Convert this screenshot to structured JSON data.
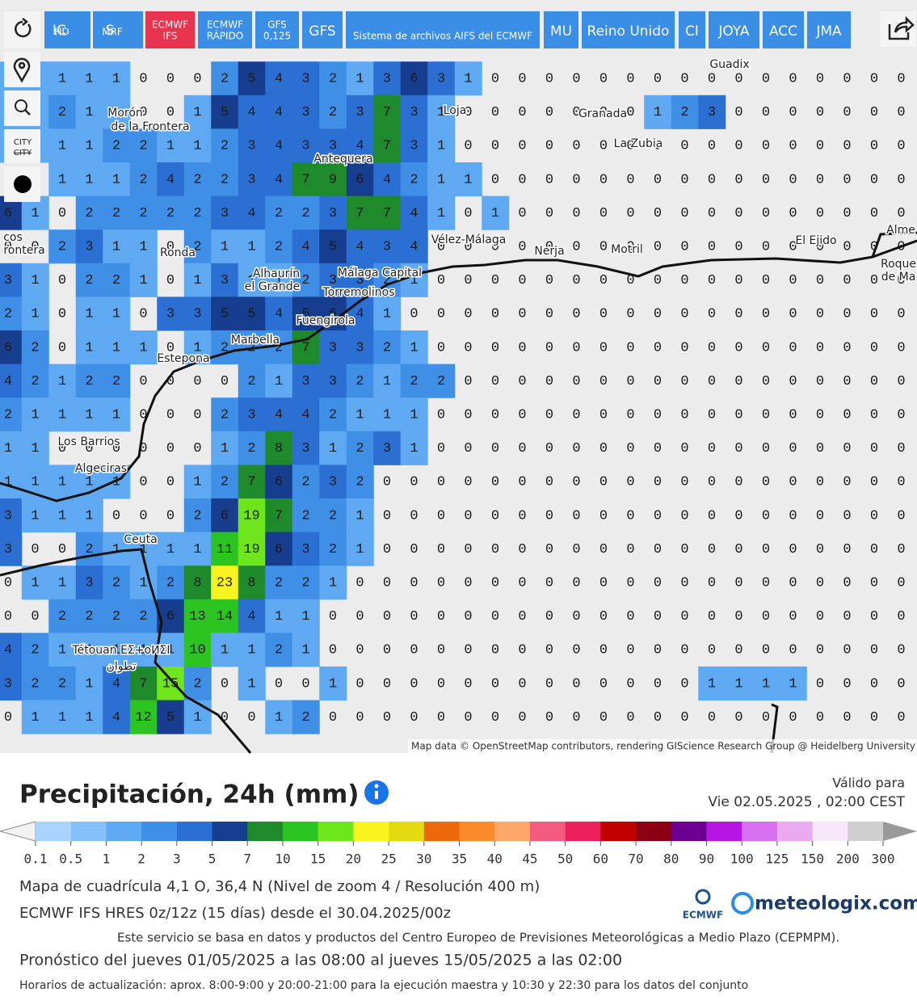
{
  "toolbar": {
    "buttons": [
      [
        "IC",
        "HD"
      ],
      [
        "S",
        "MRF"
      ],
      [
        "ECMWF",
        "IFS"
      ],
      [
        "ECMWF",
        "RÁPIDO"
      ],
      [
        "GFS",
        "0,125"
      ],
      [
        "GFS"
      ],
      [
        "Sistema de archivos AIFS del ECMWF"
      ],
      [
        "MU"
      ],
      [
        "Reino Unido"
      ],
      [
        "CI"
      ],
      [
        "JOYA"
      ],
      [
        "ACC"
      ],
      [
        "JMA"
      ]
    ],
    "city_icon": [
      "CITY",
      "CITY"
    ]
  },
  "map": {
    "grid": [
      [
        1,
        1,
        1,
        1,
        1,
        0,
        0,
        0,
        2,
        5,
        4,
        3,
        2,
        1,
        3,
        6,
        3,
        1,
        0,
        0,
        0,
        0,
        0,
        0,
        0,
        0,
        0,
        0,
        0,
        0,
        0,
        0,
        0,
        0
      ],
      [
        1,
        1,
        2,
        1,
        1,
        0,
        0,
        1,
        5,
        4,
        4,
        3,
        2,
        3,
        7,
        3,
        1,
        0,
        0,
        0,
        0,
        0,
        0,
        0,
        1,
        2,
        3,
        0,
        0,
        0,
        0,
        0,
        0,
        0
      ],
      [
        1,
        1,
        1,
        1,
        2,
        2,
        1,
        1,
        2,
        3,
        4,
        3,
        3,
        4,
        7,
        3,
        1,
        0,
        0,
        0,
        0,
        0,
        0,
        0,
        0,
        0,
        0,
        0,
        0,
        0,
        0,
        0,
        0,
        0
      ],
      [
        0,
        0,
        1,
        1,
        1,
        2,
        4,
        2,
        2,
        3,
        4,
        7,
        9,
        6,
        4,
        2,
        1,
        1,
        0,
        0,
        0,
        0,
        0,
        0,
        0,
        0,
        0,
        0,
        0,
        0,
        0,
        0,
        0,
        0
      ],
      [
        6,
        1,
        0,
        2,
        2,
        2,
        2,
        2,
        3,
        4,
        2,
        2,
        3,
        7,
        7,
        4,
        1,
        0,
        1,
        0,
        0,
        0,
        0,
        0,
        0,
        0,
        0,
        0,
        0,
        0,
        0,
        0,
        0,
        0
      ],
      [
        0,
        0,
        2,
        3,
        1,
        1,
        0,
        2,
        1,
        1,
        2,
        4,
        5,
        4,
        3,
        4,
        0,
        0,
        0,
        0,
        0,
        0,
        0,
        0,
        0,
        0,
        0,
        0,
        0,
        0,
        0,
        0,
        0,
        0
      ],
      [
        3,
        1,
        0,
        2,
        2,
        1,
        0,
        1,
        3,
        1,
        1,
        2,
        3,
        3,
        2,
        1,
        0,
        0,
        0,
        0,
        0,
        0,
        0,
        0,
        0,
        0,
        0,
        0,
        0,
        0,
        0,
        0,
        0,
        0
      ],
      [
        2,
        1,
        0,
        1,
        1,
        0,
        3,
        3,
        5,
        5,
        4,
        5,
        6,
        4,
        1,
        0,
        0,
        0,
        0,
        0,
        0,
        0,
        0,
        0,
        0,
        0,
        0,
        0,
        0,
        0,
        0,
        0,
        0,
        0
      ],
      [
        6,
        2,
        0,
        1,
        1,
        1,
        0,
        1,
        2,
        2,
        2,
        7,
        3,
        3,
        2,
        1,
        0,
        0,
        0,
        0,
        0,
        0,
        0,
        0,
        0,
        0,
        0,
        0,
        0,
        0,
        0,
        0,
        0,
        0
      ],
      [
        4,
        2,
        1,
        2,
        2,
        0,
        0,
        0,
        0,
        2,
        1,
        3,
        3,
        2,
        1,
        2,
        2,
        0,
        0,
        0,
        0,
        0,
        0,
        0,
        0,
        0,
        0,
        0,
        0,
        0,
        0,
        0,
        0,
        0
      ],
      [
        2,
        1,
        1,
        1,
        1,
        0,
        0,
        0,
        2,
        3,
        4,
        4,
        2,
        1,
        1,
        1,
        0,
        0,
        0,
        0,
        0,
        0,
        0,
        0,
        0,
        0,
        0,
        0,
        0,
        0,
        0,
        0,
        0,
        0
      ],
      [
        1,
        1,
        0,
        0,
        0,
        0,
        0,
        0,
        1,
        2,
        8,
        3,
        1,
        2,
        3,
        1,
        0,
        0,
        0,
        0,
        0,
        0,
        0,
        0,
        0,
        0,
        0,
        0,
        0,
        0,
        0,
        0,
        0,
        0
      ],
      [
        1,
        1,
        1,
        1,
        1,
        0,
        0,
        1,
        2,
        7,
        6,
        2,
        3,
        2,
        0,
        0,
        0,
        0,
        0,
        0,
        0,
        0,
        0,
        0,
        0,
        0,
        0,
        0,
        0,
        0,
        0,
        0,
        0,
        0
      ],
      [
        3,
        1,
        1,
        1,
        0,
        0,
        0,
        2,
        6,
        19,
        7,
        2,
        2,
        1,
        0,
        0,
        0,
        0,
        0,
        0,
        0,
        0,
        0,
        0,
        0,
        0,
        0,
        0,
        0,
        0,
        0,
        0,
        0,
        0
      ],
      [
        3,
        0,
        0,
        2,
        1,
        1,
        1,
        1,
        11,
        19,
        6,
        3,
        2,
        1,
        0,
        0,
        0,
        0,
        0,
        0,
        0,
        0,
        0,
        0,
        0,
        0,
        0,
        0,
        0,
        0,
        0,
        0,
        0,
        0
      ],
      [
        0,
        1,
        1,
        3,
        2,
        1,
        2,
        8,
        23,
        8,
        2,
        2,
        1,
        0,
        0,
        0,
        0,
        0,
        0,
        0,
        0,
        0,
        0,
        0,
        0,
        0,
        0,
        0,
        0,
        0,
        0,
        0,
        0,
        0
      ],
      [
        0,
        0,
        2,
        2,
        2,
        2,
        6,
        13,
        14,
        4,
        1,
        1,
        0,
        0,
        0,
        0,
        0,
        0,
        0,
        0,
        0,
        0,
        0,
        0,
        0,
        0,
        0,
        0,
        0,
        0,
        0,
        0,
        0,
        0
      ],
      [
        4,
        2,
        1,
        1,
        1,
        1,
        1,
        10,
        1,
        1,
        2,
        1,
        0,
        0,
        0,
        0,
        0,
        0,
        0,
        0,
        0,
        0,
        0,
        0,
        0,
        0,
        0,
        0,
        0,
        0,
        0,
        0,
        0,
        0
      ],
      [
        3,
        2,
        2,
        1,
        4,
        7,
        15,
        2,
        0,
        1,
        0,
        0,
        1,
        0,
        0,
        0,
        0,
        0,
        0,
        0,
        0,
        0,
        0,
        0,
        0,
        0,
        1,
        1,
        1,
        1,
        0,
        0,
        0,
        0
      ],
      [
        0,
        1,
        1,
        1,
        4,
        12,
        5,
        1,
        0,
        0,
        1,
        2,
        0,
        0,
        0,
        0,
        0,
        0,
        0,
        0,
        0,
        0,
        0,
        0,
        0,
        0,
        0,
        0,
        0,
        0,
        0,
        0,
        0,
        0
      ]
    ],
    "places": [
      "Guadix",
      "Morón",
      "de la Frontera",
      "Loja",
      "Granada",
      "La Zubia",
      "Antequera",
      "Vélez-Málaga",
      "Nerja",
      "Motril",
      "El Ejido",
      "Ronda",
      "Alhaurín",
      "el Grande",
      "Málaga Capital",
      "Torremolinos",
      "Fuengirola",
      "Marbella",
      "Estepona",
      "Los Barrios",
      "Algeciras",
      "Ceuta",
      "Tétouan ΕΣ+οⵍΣΙ",
      "تطوان",
      "Alme",
      "Roque",
      "de Ma",
      "cos",
      "rontera"
    ],
    "attribution": "Map data © OpenStreetMap contributors, rendering GIScience Research Group @ Heidelberg University"
  },
  "legend": {
    "title": "Precipitación, 24h (mm)",
    "valid_label": "Válido para",
    "valid_time": "Vie 02.05.2025 , 02:00 CEST",
    "ticks": [
      0.1,
      0.5,
      1,
      2,
      3,
      5,
      7,
      10,
      15,
      20,
      25,
      30,
      35,
      40,
      45,
      50,
      60,
      70,
      80,
      90,
      100,
      125,
      150,
      200,
      300
    ],
    "colors": [
      "#f2f2f2",
      "#a9d4fb",
      "#85c1f8",
      "#5fa9f2",
      "#3f8fe7",
      "#2b6fd3",
      "#173d8f",
      "#1e8a2b",
      "#2cc421",
      "#6fe61b",
      "#f9f41f",
      "#e3db10",
      "#ee690c",
      "#f98b2c",
      "#fca86b",
      "#f55a7f",
      "#ee1f5d",
      "#c30000",
      "#8b0012",
      "#6b0092",
      "#b616e3",
      "#d770ef",
      "#e9aaf2",
      "#f6e8f8",
      "#cfcfcf",
      "#999999"
    ]
  },
  "footer": {
    "lines": [
      "Mapa de cuadrícula 4,1 O, 36,4 N (Nivel de zoom 4 / Resolución 400 m)",
      "ECMWF IFS HRES 0z/12z (15 días) desde el 30.04.2025/00z",
      "Este servicio se basa en datos y productos del Centro Europeo de Previsiones Meteorológicas a Medio Plazo (CEPMPM).",
      "Pronóstico del jueves 01/05/2025 a las 08:00 al jueves 15/05/2025 a las 02:00",
      "Horarios de actualización: aprox. 8:00-9:00 y 20:00-21:00 para la ejecución maestra y 10:30 y 22:30 para los datos del conjunto"
    ],
    "logo_ecmwf": "ECMWF",
    "logo_meteologix": "meteologix.com"
  }
}
